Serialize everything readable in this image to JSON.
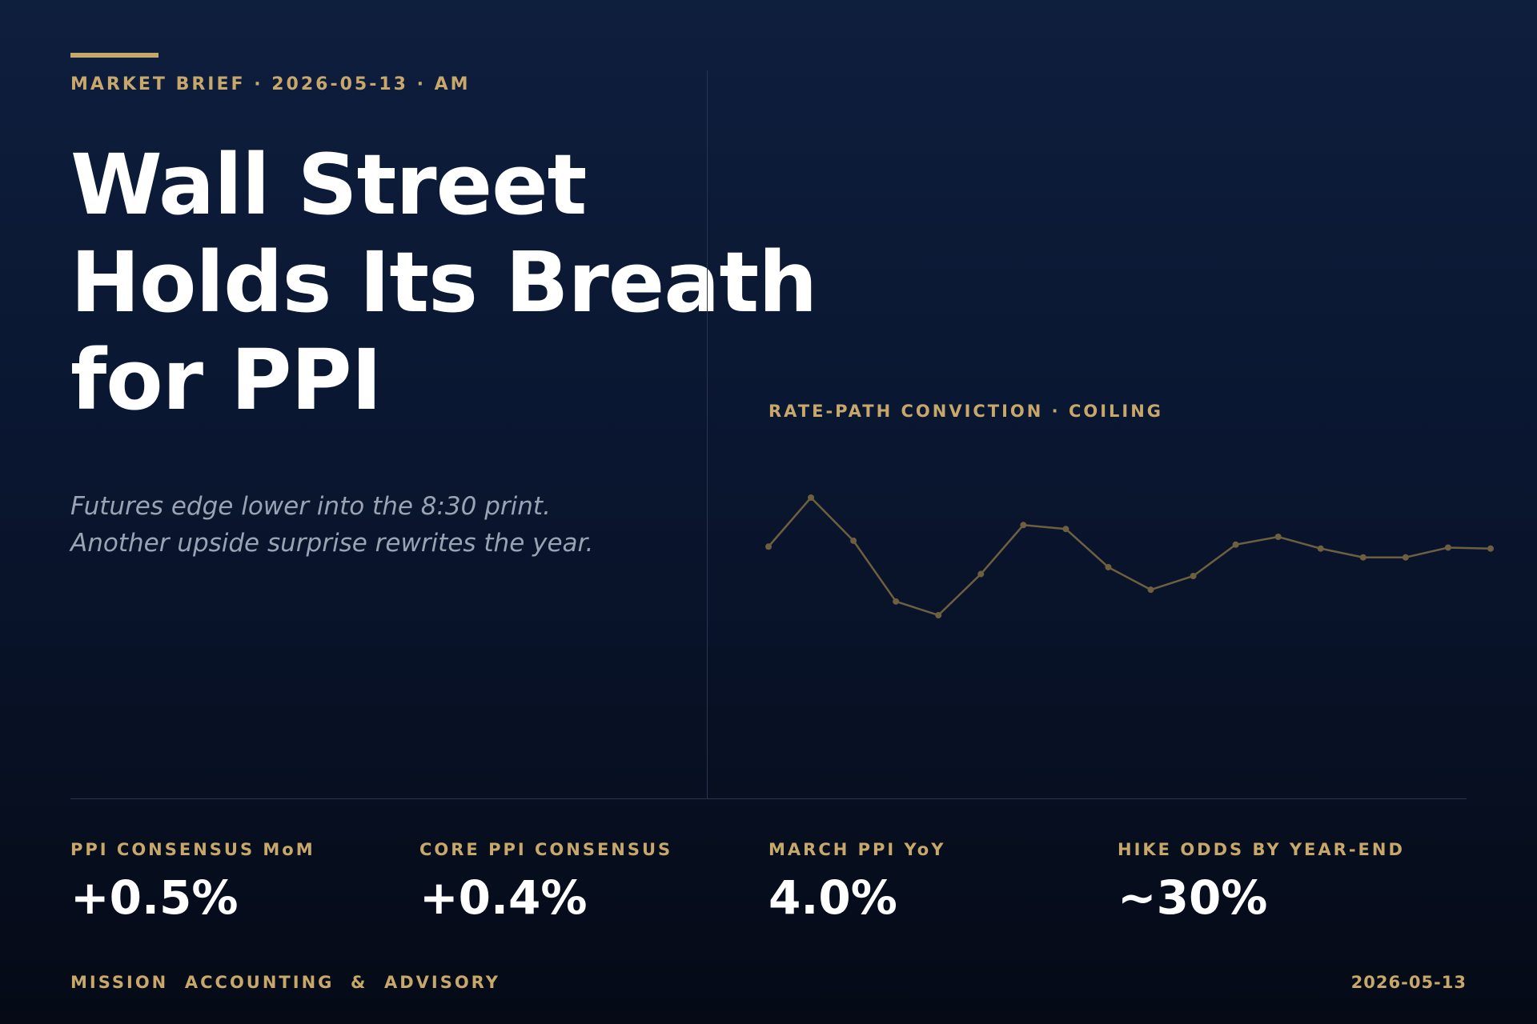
{
  "header": {
    "kicker": "MARKET BRIEF · 2026-05-13 · AM",
    "title_lines": [
      "Wall Street",
      "Holds Its Breath",
      "for PPI"
    ],
    "subtitle_lines": [
      "Futures edge lower into the 8:30 print.",
      "Another upside surprise rewrites the year."
    ]
  },
  "chart_data": {
    "type": "line",
    "title": "RATE-PATH CONVICTION · COILING",
    "color": "#6e5f3f",
    "values": [
      82,
      132,
      88,
      26,
      12,
      54,
      104,
      100,
      61,
      38,
      52,
      84,
      92,
      80,
      71,
      71,
      81,
      80
    ]
  },
  "stats": [
    {
      "label": "PPI CONSENSUS MoM",
      "value": "+0.5%"
    },
    {
      "label": "CORE PPI CONSENSUS",
      "value": "+0.4%"
    },
    {
      "label": "MARCH PPI YoY",
      "value": "4.0%"
    },
    {
      "label": "HIKE ODDS BY YEAR-END",
      "value": "~30%"
    }
  ],
  "footer": {
    "left": "MISSION  ACCOUNTING  &  ADVISORY",
    "right": "2026-05-13"
  }
}
